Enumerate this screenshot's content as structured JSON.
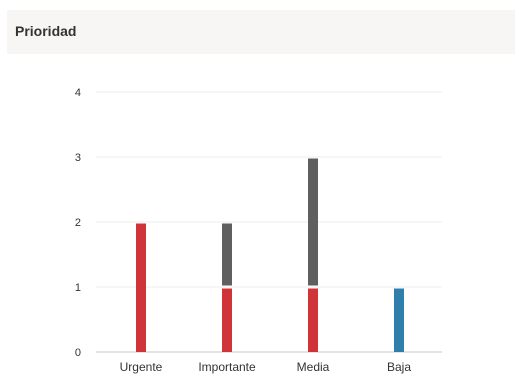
{
  "panel": {
    "title": "Prioridad"
  },
  "chart_data": {
    "type": "bar",
    "stacked": true,
    "categories": [
      "Urgente",
      "Importante",
      "Media",
      "Baja"
    ],
    "yticks": [
      "0",
      "1",
      "2",
      "3",
      "4"
    ],
    "ylim": [
      0,
      4
    ],
    "grid": true,
    "series": [
      {
        "color": "#d13438",
        "values": [
          2,
          1,
          1,
          0
        ]
      },
      {
        "color": "#5f5f5f",
        "values": [
          0,
          1,
          2,
          0
        ]
      },
      {
        "color": "#2f7fad",
        "values": [
          0,
          0,
          0,
          1
        ]
      }
    ]
  }
}
